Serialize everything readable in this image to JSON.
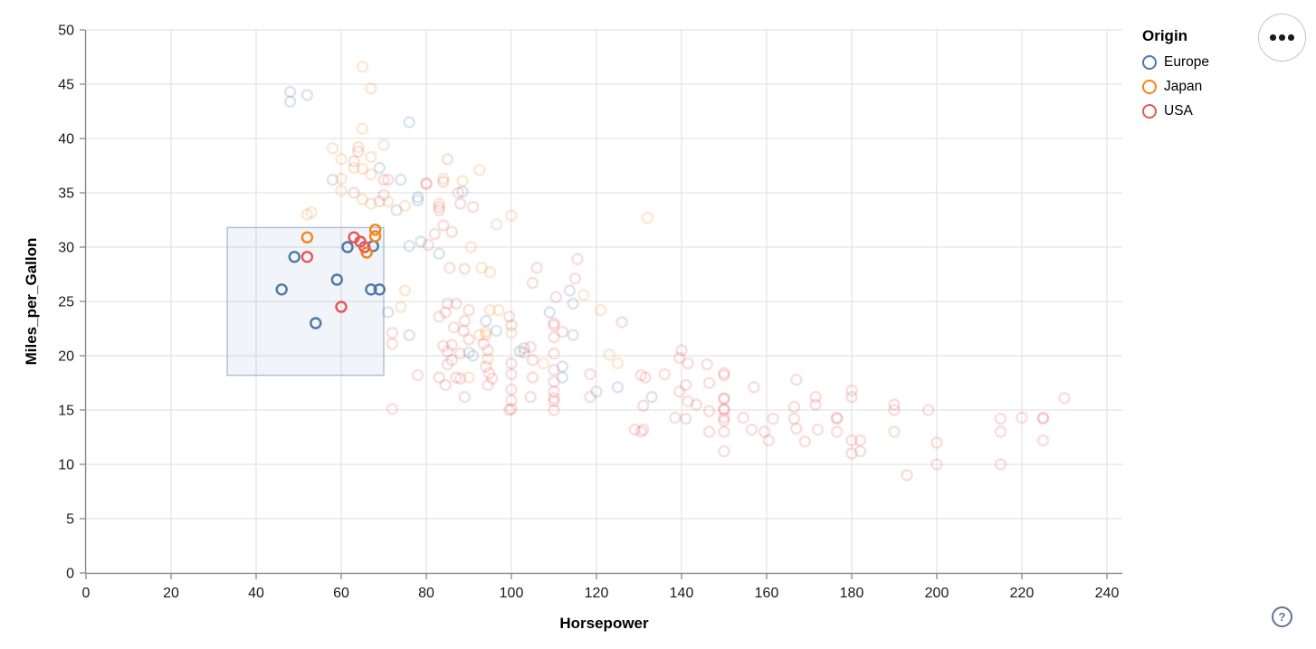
{
  "legend": {
    "title": "Origin",
    "items": [
      {
        "label": "Europe",
        "color": "#4c78a8"
      },
      {
        "label": "Japan",
        "color": "#f58518"
      },
      {
        "label": "USA",
        "color": "#e45756"
      }
    ]
  },
  "buttons": {
    "more_options_label": "more options",
    "help_label": "?"
  },
  "chart_data": {
    "type": "scatter",
    "title": "",
    "xlabel": "Horsepower",
    "ylabel": "Miles_per_Gallon",
    "xlim": [
      0,
      240
    ],
    "ylim": [
      0,
      50
    ],
    "x_ticks": [
      0,
      20,
      40,
      60,
      80,
      100,
      120,
      140,
      160,
      180,
      200,
      220,
      240
    ],
    "y_ticks": [
      0,
      5,
      10,
      15,
      20,
      25,
      30,
      35,
      40,
      45,
      50
    ],
    "grid": true,
    "legend_position": "right",
    "point_opacity_selected": 1.0,
    "point_opacity_unselected": 0.2,
    "colors": {
      "grid": "#dddddd",
      "axis": "#888888",
      "tick_label": "#1a1a1a"
    },
    "brush": {
      "x": [
        33.2,
        70.0
      ],
      "y": [
        18.2,
        31.8
      ],
      "fill": "#4c78a8",
      "fill_opacity": 0.08,
      "stroke": "#8fabd4",
      "stroke_opacity": 0.75,
      "note": "interval selection; points inside are opaque, outside faded"
    },
    "series": [
      {
        "name": "Europe",
        "color": "#4c78a8",
        "points": [
          [
            46,
            26.1
          ],
          [
            49,
            29.1
          ],
          [
            54,
            23
          ],
          [
            59,
            27
          ],
          [
            61.5,
            30
          ],
          [
            67.5,
            30.1
          ],
          [
            67,
            26.1
          ],
          [
            69,
            26.1
          ],
          [
            48,
            44.3
          ],
          [
            52,
            44
          ],
          [
            48,
            43.4
          ],
          [
            76,
            41.5
          ],
          [
            69,
            37.3
          ],
          [
            58,
            36.2
          ],
          [
            74,
            36.2
          ],
          [
            88.5,
            35.1
          ],
          [
            78,
            34.6
          ],
          [
            78,
            34.3
          ],
          [
            73,
            33.4
          ],
          [
            78.7,
            30.5
          ],
          [
            76,
            30.1
          ],
          [
            83,
            29.4
          ],
          [
            114.5,
            24.8
          ],
          [
            109,
            24
          ],
          [
            94,
            23.2
          ],
          [
            96.5,
            22.3
          ],
          [
            113.7,
            26
          ],
          [
            71,
            24
          ],
          [
            76,
            21.9
          ],
          [
            90,
            20.3
          ],
          [
            91,
            20
          ],
          [
            102,
            20.4
          ],
          [
            103,
            20.7
          ],
          [
            112,
            19
          ],
          [
            112,
            18
          ],
          [
            114.5,
            21.9
          ],
          [
            125,
            17.1
          ],
          [
            120,
            16.7
          ],
          [
            133,
            16.2
          ]
        ]
      },
      {
        "name": "Japan",
        "color": "#f58518",
        "points": [
          [
            52,
            30.9
          ],
          [
            66,
            29.5
          ],
          [
            68,
            31.6
          ],
          [
            68,
            31
          ],
          [
            65,
            46.6
          ],
          [
            67,
            44.6
          ],
          [
            65,
            40.9
          ],
          [
            58,
            39.1
          ],
          [
            64,
            39.2
          ],
          [
            70,
            39.4
          ],
          [
            60,
            38.1
          ],
          [
            67,
            38.3
          ],
          [
            63,
            37.3
          ],
          [
            65,
            37.2
          ],
          [
            67,
            36.7
          ],
          [
            60,
            36.3
          ],
          [
            84,
            36.3
          ],
          [
            88.5,
            36.1
          ],
          [
            92.5,
            37.1
          ],
          [
            60,
            35.2
          ],
          [
            65,
            34.4
          ],
          [
            67,
            34
          ],
          [
            71,
            34.2
          ],
          [
            75,
            33.8
          ],
          [
            83,
            34
          ],
          [
            53,
            33.2
          ],
          [
            52,
            33
          ],
          [
            100,
            32.9
          ],
          [
            96.5,
            32.1
          ],
          [
            132,
            32.7
          ],
          [
            90.5,
            30
          ],
          [
            93,
            28.1
          ],
          [
            95,
            27.7
          ],
          [
            75,
            26
          ],
          [
            74,
            24.5
          ],
          [
            95,
            24.2
          ],
          [
            97,
            24.2
          ],
          [
            94,
            22.2
          ],
          [
            100,
            22.1
          ],
          [
            92.5,
            21.9
          ],
          [
            94,
            21.9
          ],
          [
            94.5,
            19.7
          ],
          [
            90,
            18
          ],
          [
            107.5,
            19.3
          ],
          [
            117,
            25.6
          ],
          [
            121,
            24.2
          ],
          [
            123,
            20.1
          ],
          [
            125,
            19.3
          ]
        ]
      },
      {
        "name": "USA",
        "color": "#e45756",
        "points": [
          [
            52,
            29.1
          ],
          [
            60,
            24.5
          ],
          [
            63,
            30.9
          ],
          [
            64.5,
            30.5
          ],
          [
            65.5,
            30
          ],
          [
            64,
            38.8
          ],
          [
            63,
            37.9
          ],
          [
            63,
            35
          ],
          [
            70,
            34.8
          ],
          [
            69,
            34.2
          ],
          [
            70,
            36.2
          ],
          [
            71,
            36.2
          ],
          [
            80,
            35.9
          ],
          [
            85,
            38.1
          ],
          [
            84,
            36
          ],
          [
            80,
            35.8
          ],
          [
            87.5,
            35
          ],
          [
            88,
            34
          ],
          [
            91,
            33.7
          ],
          [
            83,
            33.7
          ],
          [
            83,
            33.4
          ],
          [
            84,
            32
          ],
          [
            82,
            31.2
          ],
          [
            86,
            31.4
          ],
          [
            80.5,
            30.2
          ],
          [
            85.5,
            28.1
          ],
          [
            89,
            28
          ],
          [
            106,
            28.1
          ],
          [
            115.5,
            28.9
          ],
          [
            105,
            26.7
          ],
          [
            115,
            27.1
          ],
          [
            110.5,
            25.4
          ],
          [
            126,
            23.1
          ],
          [
            85,
            24.8
          ],
          [
            87,
            24.8
          ],
          [
            90,
            24.2
          ],
          [
            84.5,
            24
          ],
          [
            83,
            23.6
          ],
          [
            89,
            23.2
          ],
          [
            86.5,
            22.6
          ],
          [
            99.5,
            23.6
          ],
          [
            100,
            22.8
          ],
          [
            110,
            23
          ],
          [
            112,
            22.2
          ],
          [
            110,
            22.8
          ],
          [
            110,
            21.7
          ],
          [
            72,
            22.1
          ],
          [
            72,
            21.1
          ],
          [
            88.8,
            22.3
          ],
          [
            90,
            21.5
          ],
          [
            86,
            21
          ],
          [
            93.5,
            21.1
          ],
          [
            84,
            20.9
          ],
          [
            85,
            20.4
          ],
          [
            94.5,
            20.5
          ],
          [
            104.5,
            20.8
          ],
          [
            103,
            20.3
          ],
          [
            88,
            20.2
          ],
          [
            85,
            19.2
          ],
          [
            86,
            19.6
          ],
          [
            94,
            19
          ],
          [
            100,
            19.3
          ],
          [
            105,
            19.6
          ],
          [
            110,
            20.2
          ],
          [
            94.8,
            18.4
          ],
          [
            95.5,
            17.9
          ],
          [
            94.5,
            17.3
          ],
          [
            87,
            18
          ],
          [
            88,
            17.9
          ],
          [
            84.5,
            17.3
          ],
          [
            78,
            18.2
          ],
          [
            83,
            18
          ],
          [
            100,
            18.3
          ],
          [
            110,
            18.7
          ],
          [
            105,
            18
          ],
          [
            110,
            17.6
          ],
          [
            100,
            16.9
          ],
          [
            104.5,
            16.2
          ],
          [
            110,
            16.7
          ],
          [
            89,
            16.2
          ],
          [
            110,
            16.1
          ],
          [
            100,
            15.9
          ],
          [
            110,
            15.8
          ],
          [
            100,
            15.1
          ],
          [
            110,
            15
          ],
          [
            99.5,
            15
          ],
          [
            72,
            15.1
          ],
          [
            118.5,
            18.3
          ],
          [
            118.5,
            16.2
          ],
          [
            130.5,
            18.2
          ],
          [
            131.5,
            18
          ],
          [
            131,
            15.4
          ],
          [
            131,
            13.2
          ],
          [
            129,
            13.2
          ],
          [
            130.5,
            13
          ],
          [
            136,
            18.3
          ],
          [
            138.5,
            14.3
          ],
          [
            139.5,
            19.8
          ],
          [
            139.5,
            16.7
          ],
          [
            140,
            20.5
          ],
          [
            141.5,
            19.3
          ],
          [
            141,
            17.3
          ],
          [
            141.5,
            15.8
          ],
          [
            141,
            14.2
          ],
          [
            143.5,
            15.5
          ],
          [
            146,
            19.2
          ],
          [
            146.5,
            17.5
          ],
          [
            146.5,
            14.9
          ],
          [
            146.5,
            13
          ],
          [
            150,
            18.4
          ],
          [
            150,
            18.2
          ],
          [
            150,
            16.1
          ],
          [
            150,
            16
          ],
          [
            150,
            15.1
          ],
          [
            150,
            15
          ],
          [
            150,
            14.3
          ],
          [
            150,
            14
          ],
          [
            150,
            13
          ],
          [
            150,
            11.2
          ],
          [
            154.5,
            14.3
          ],
          [
            157,
            17.1
          ],
          [
            156.5,
            13.2
          ],
          [
            159.5,
            13
          ],
          [
            160.5,
            12.2
          ],
          [
            161.5,
            14.2
          ],
          [
            166.5,
            15.3
          ],
          [
            166.5,
            14.2
          ],
          [
            167,
            17.8
          ],
          [
            167,
            13.3
          ],
          [
            169,
            12.1
          ],
          [
            171.5,
            16.2
          ],
          [
            171.5,
            15.5
          ],
          [
            172,
            13.2
          ],
          [
            176.5,
            14.3
          ],
          [
            176.5,
            14.2
          ],
          [
            176.5,
            13
          ],
          [
            180,
            16.8
          ],
          [
            180,
            16.2
          ],
          [
            180,
            12.2
          ],
          [
            180,
            11
          ],
          [
            182,
            12.2
          ],
          [
            182,
            11.2
          ],
          [
            190,
            15.5
          ],
          [
            190,
            15
          ],
          [
            190,
            13
          ],
          [
            193,
            9
          ],
          [
            198,
            15
          ],
          [
            200,
            12
          ],
          [
            200,
            10
          ],
          [
            215,
            14.2
          ],
          [
            215,
            13
          ],
          [
            215,
            10
          ],
          [
            220,
            14.3
          ],
          [
            225,
            14.3
          ],
          [
            225,
            14.2
          ],
          [
            225,
            12.2
          ],
          [
            230,
            16.1
          ]
        ]
      }
    ]
  }
}
